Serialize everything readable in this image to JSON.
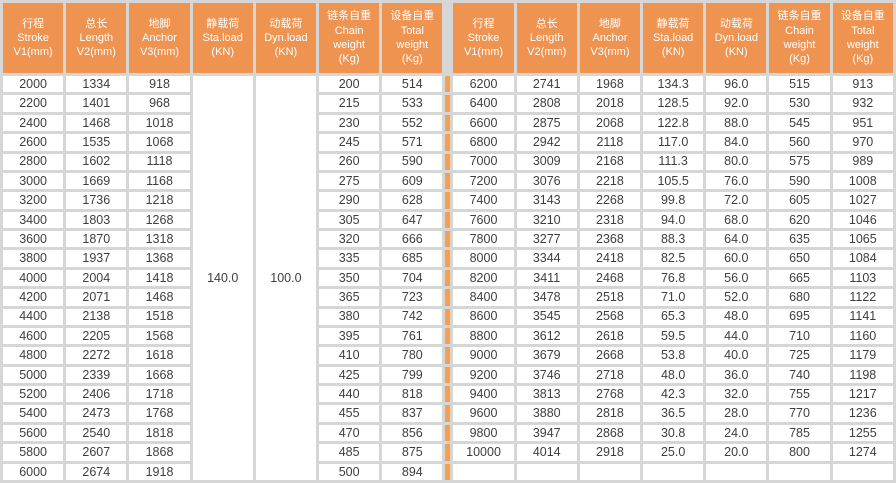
{
  "colors": {
    "header_bg": "#EF9351",
    "header_text": "#FFFFFF",
    "divider": "#F6A04E",
    "grid": "#D6D6D6",
    "cell_bg": "#FFFFFF",
    "text": "#3E3E3E"
  },
  "table": {
    "header_columns": [
      {
        "name": "stroke",
        "label": "行程\nStroke\nV1(mm)"
      },
      {
        "name": "length",
        "label": "总长\nLength\nV2(mm)"
      },
      {
        "name": "anchor",
        "label": "地脚\nAnchor\nV3(mm)"
      },
      {
        "name": "static-load",
        "label": "静载荷\nSta.load\n(KN)"
      },
      {
        "name": "dynamic-load",
        "label": "动载荷\nDyn.load\n(KN)"
      },
      {
        "name": "chain-weight",
        "label": "链条自重\nChain\nweight\n(Kg)"
      },
      {
        "name": "total-weight",
        "label": "设备自重\nTotal\nweight\n(Kg)"
      }
    ],
    "left": {
      "static_load": "140.0",
      "dynamic_load": "100.0",
      "rows": [
        [
          "2000",
          "1334",
          "918",
          "200",
          "514"
        ],
        [
          "2200",
          "1401",
          "968",
          "215",
          "533"
        ],
        [
          "2400",
          "1468",
          "1018",
          "230",
          "552"
        ],
        [
          "2600",
          "1535",
          "1068",
          "245",
          "571"
        ],
        [
          "2800",
          "1602",
          "1118",
          "260",
          "590"
        ],
        [
          "3000",
          "1669",
          "1168",
          "275",
          "609"
        ],
        [
          "3200",
          "1736",
          "1218",
          "290",
          "628"
        ],
        [
          "3400",
          "1803",
          "1268",
          "305",
          "647"
        ],
        [
          "3600",
          "1870",
          "1318",
          "320",
          "666"
        ],
        [
          "3800",
          "1937",
          "1368",
          "335",
          "685"
        ],
        [
          "4000",
          "2004",
          "1418",
          "350",
          "704"
        ],
        [
          "4200",
          "2071",
          "1468",
          "365",
          "723"
        ],
        [
          "4400",
          "2138",
          "1518",
          "380",
          "742"
        ],
        [
          "4600",
          "2205",
          "1568",
          "395",
          "761"
        ],
        [
          "4800",
          "2272",
          "1618",
          "410",
          "780"
        ],
        [
          "5000",
          "2339",
          "1668",
          "425",
          "799"
        ],
        [
          "5200",
          "2406",
          "1718",
          "440",
          "818"
        ],
        [
          "5400",
          "2473",
          "1768",
          "455",
          "837"
        ],
        [
          "5600",
          "2540",
          "1818",
          "470",
          "856"
        ],
        [
          "5800",
          "2607",
          "1868",
          "485",
          "875"
        ],
        [
          "6000",
          "2674",
          "1918",
          "500",
          "894"
        ]
      ]
    },
    "right": {
      "rows": [
        [
          "6200",
          "2741",
          "1968",
          "134.3",
          "96.0",
          "515",
          "913"
        ],
        [
          "6400",
          "2808",
          "2018",
          "128.5",
          "92.0",
          "530",
          "932"
        ],
        [
          "6600",
          "2875",
          "2068",
          "122.8",
          "88.0",
          "545",
          "951"
        ],
        [
          "6800",
          "2942",
          "2118",
          "117.0",
          "84.0",
          "560",
          "970"
        ],
        [
          "7000",
          "3009",
          "2168",
          "111.3",
          "80.0",
          "575",
          "989"
        ],
        [
          "7200",
          "3076",
          "2218",
          "105.5",
          "76.0",
          "590",
          "1008"
        ],
        [
          "7400",
          "3143",
          "2268",
          "99.8",
          "72.0",
          "605",
          "1027"
        ],
        [
          "7600",
          "3210",
          "2318",
          "94.0",
          "68.0",
          "620",
          "1046"
        ],
        [
          "7800",
          "3277",
          "2368",
          "88.3",
          "64.0",
          "635",
          "1065"
        ],
        [
          "8000",
          "3344",
          "2418",
          "82.5",
          "60.0",
          "650",
          "1084"
        ],
        [
          "8200",
          "3411",
          "2468",
          "76.8",
          "56.0",
          "665",
          "1103"
        ],
        [
          "8400",
          "3478",
          "2518",
          "71.0",
          "52.0",
          "680",
          "1122"
        ],
        [
          "8600",
          "3545",
          "2568",
          "65.3",
          "48.0",
          "695",
          "1141"
        ],
        [
          "8800",
          "3612",
          "2618",
          "59.5",
          "44.0",
          "710",
          "1160"
        ],
        [
          "9000",
          "3679",
          "2668",
          "53.8",
          "40.0",
          "725",
          "1179"
        ],
        [
          "9200",
          "3746",
          "2718",
          "48.0",
          "36.0",
          "740",
          "1198"
        ],
        [
          "9400",
          "3813",
          "2768",
          "42.3",
          "32.0",
          "755",
          "1217"
        ],
        [
          "9600",
          "3880",
          "2818",
          "36.5",
          "28.0",
          "770",
          "1236"
        ],
        [
          "9800",
          "3947",
          "2868",
          "30.8",
          "24.0",
          "785",
          "1255"
        ],
        [
          "10000",
          "4014",
          "2918",
          "25.0",
          "20.0",
          "800",
          "1274"
        ],
        [
          "",
          "",
          "",
          "",
          "",
          "",
          ""
        ]
      ]
    }
  }
}
